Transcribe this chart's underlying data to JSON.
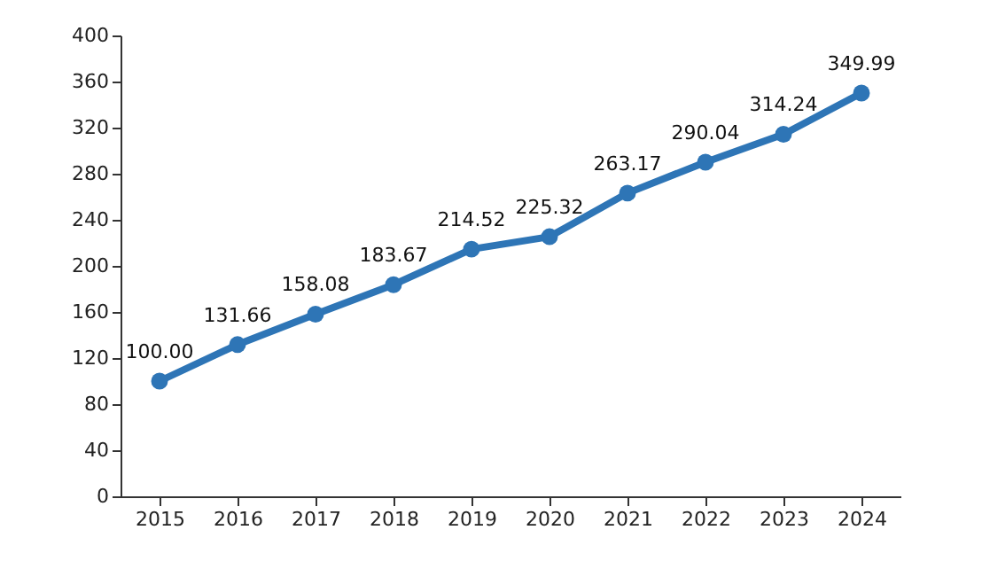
{
  "chart_data": {
    "type": "line",
    "categories": [
      "2015",
      "2016",
      "2017",
      "2018",
      "2019",
      "2020",
      "2021",
      "2022",
      "2023",
      "2024"
    ],
    "series": [
      {
        "color": "#2e75b6",
        "values": [
          100.0,
          131.66,
          158.08,
          183.67,
          214.52,
          225.32,
          263.17,
          290.04,
          314.24,
          349.99
        ],
        "value_labels": [
          "100.00",
          "131.66",
          "158.08",
          "183.67",
          "214.52",
          "225.32",
          "263.17",
          "290.04",
          "314.24",
          "349.99"
        ]
      }
    ],
    "ylim": [
      0,
      400
    ],
    "yticks": [
      0,
      40,
      80,
      120,
      160,
      200,
      240,
      280,
      320,
      360,
      400
    ],
    "grid": false,
    "marker": "circle",
    "line_style": "solid"
  }
}
